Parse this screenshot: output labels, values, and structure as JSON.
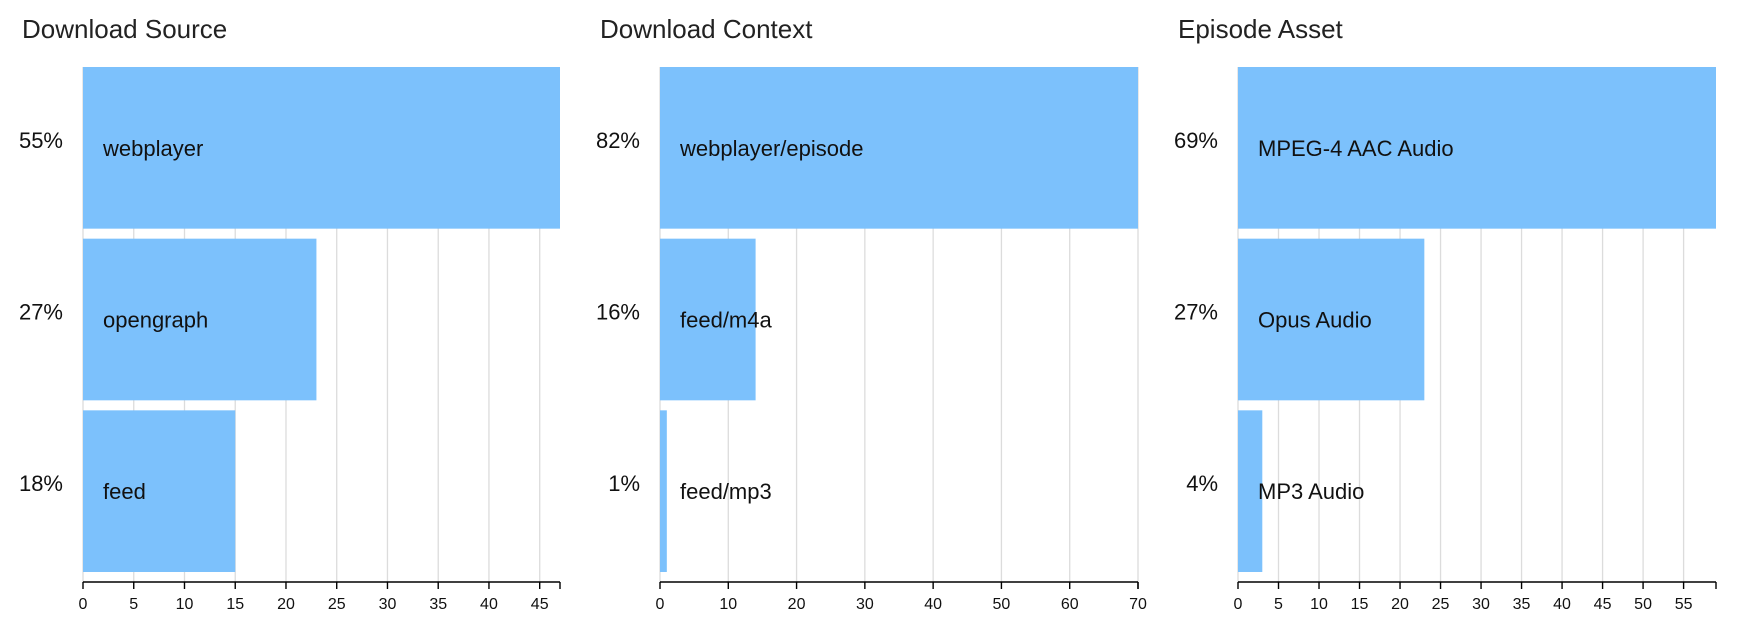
{
  "bar_color": "#7cc1fc",
  "chart_data": [
    {
      "type": "bar",
      "orientation": "horizontal",
      "title": "Download Source",
      "categories": [
        "webplayer",
        "opengraph",
        "feed"
      ],
      "values": [
        47,
        23,
        15
      ],
      "percent_labels": [
        "55%",
        "27%",
        "18%"
      ],
      "xlim": [
        0,
        47
      ],
      "xticks": [
        0,
        5,
        10,
        15,
        20,
        25,
        30,
        35,
        40,
        45
      ],
      "xlabel": "",
      "ylabel": "",
      "grid": true
    },
    {
      "type": "bar",
      "orientation": "horizontal",
      "title": "Download Context",
      "categories": [
        "webplayer/episode",
        "feed/m4a",
        "feed/mp3"
      ],
      "values": [
        70,
        14,
        1
      ],
      "percent_labels": [
        "82%",
        "16%",
        "1%"
      ],
      "xlim": [
        0,
        70
      ],
      "xticks": [
        0,
        10,
        20,
        30,
        40,
        50,
        60,
        70
      ],
      "xlabel": "",
      "ylabel": "",
      "grid": true
    },
    {
      "type": "bar",
      "orientation": "horizontal",
      "title": "Episode Asset",
      "categories": [
        "MPEG-4 AAC Audio",
        "Opus Audio",
        "MP3 Audio"
      ],
      "values": [
        59,
        23,
        3
      ],
      "percent_labels": [
        "69%",
        "27%",
        "4%"
      ],
      "xlim": [
        0,
        59
      ],
      "xticks": [
        0,
        5,
        10,
        15,
        20,
        25,
        30,
        35,
        40,
        45,
        50,
        55
      ],
      "xlabel": "",
      "ylabel": "",
      "grid": true
    }
  ]
}
